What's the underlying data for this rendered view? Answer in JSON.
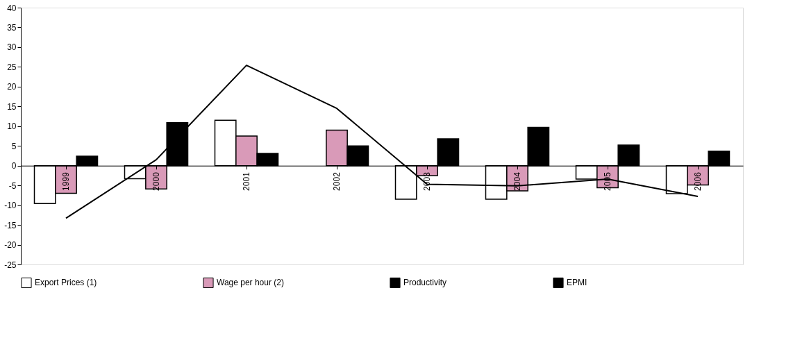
{
  "chart_data": {
    "type": "bar",
    "categories": [
      "1999",
      "2000",
      "2001",
      "2002",
      "2003",
      "2004",
      "2005",
      "2006"
    ],
    "series": [
      {
        "name": "Export Prices (1)",
        "color": "#ffffff",
        "values": [
          -9.6,
          -3.3,
          11.5,
          null,
          -8.5,
          -8.5,
          -3.4,
          -7.1
        ]
      },
      {
        "name": "Wage per hour (2)",
        "color": "#d99ab8",
        "values": [
          -7.0,
          -5.9,
          7.5,
          9.0,
          -2.5,
          -6.4,
          -5.6,
          -4.9
        ]
      },
      {
        "name": "Productivity",
        "color": "#000000",
        "values": [
          2.4,
          10.9,
          3.1,
          5.0,
          6.8,
          9.7,
          5.2,
          3.7
        ]
      },
      {
        "name": "EPMI",
        "type": "line",
        "color": "#000000",
        "values": [
          -13.3,
          1.5,
          25.4,
          14.5,
          -4.7,
          -5.1,
          -3.4,
          -7.8
        ]
      }
    ],
    "ylim": [
      -25,
      40
    ],
    "yticks": [
      -25,
      -20,
      -15,
      -10,
      -5,
      0,
      5,
      10,
      15,
      20,
      25,
      30,
      35,
      40
    ],
    "grid": false,
    "legend": "bottom",
    "marker": "none"
  }
}
